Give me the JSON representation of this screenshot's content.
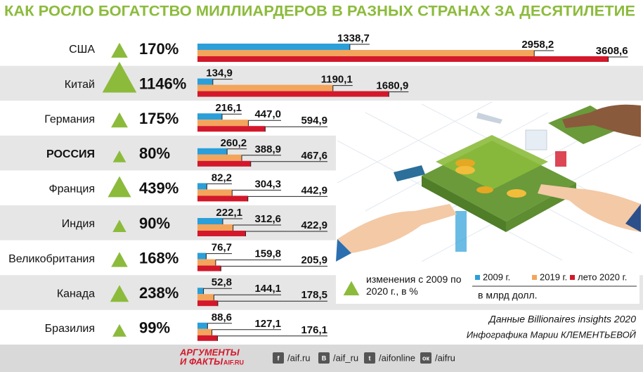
{
  "chart_data": {
    "type": "bar",
    "orientation": "horizontal",
    "title": "КАК РОСЛО БОГАТСТВО МИЛЛИАРДЕРОВ В РАЗНЫХ СТРАНАХ ЗА ДЕСЯТИЛЕТИЕ",
    "categories": [
      "США",
      "Китай",
      "Германия",
      "РОССИЯ",
      "Франция",
      "Индия",
      "Великобритания",
      "Канада",
      "Бразилия"
    ],
    "highlight_index": 3,
    "series": [
      {
        "name": "2009 г.",
        "color": "#2b9fd9",
        "values": [
          1338.7,
          134.9,
          216.1,
          260.2,
          82.2,
          222.1,
          76.7,
          52.8,
          88.6
        ],
        "value_labels": [
          "1338,7",
          "134,9",
          "216,1",
          "260,2",
          "82,2",
          "222,1",
          "76,7",
          "52,8",
          "88,6"
        ]
      },
      {
        "name": "2019 г.",
        "color": "#f3a55c",
        "values": [
          2958.2,
          1190.1,
          447.0,
          388.9,
          304.3,
          312.6,
          159.8,
          144.1,
          127.1
        ],
        "value_labels": [
          "2958,2",
          "1190,1",
          "447,0",
          "388,9",
          "304,3",
          "312,6",
          "159,8",
          "144,1",
          "127,1"
        ]
      },
      {
        "name": "лето 2020 г.",
        "color": "#d3182b",
        "values": [
          3608.6,
          1680.9,
          594.9,
          467.6,
          442.9,
          422.9,
          205.9,
          178.5,
          176.1
        ],
        "value_labels": [
          "3608,6",
          "1680,9",
          "594,9",
          "467,6",
          "442,9",
          "422,9",
          "205,9",
          "178,5",
          "176,1"
        ]
      }
    ],
    "change": {
      "name": "изменения с 2009 по 2020 г., в %",
      "color": "#8cbb3c",
      "values": [
        170,
        1146,
        175,
        80,
        439,
        90,
        168,
        238,
        99
      ],
      "value_labels": [
        "170%",
        "1146%",
        "175%",
        "80%",
        "439%",
        "90%",
        "168%",
        "238%",
        "99%"
      ]
    },
    "unit": "в млрд долл.",
    "source": [
      "Данные Billionaires insights 2020",
      "Инфографика Марии КЛЕМЕНТЬЕВОЙ"
    ]
  },
  "footer": {
    "logo": [
      "АРГУМЕНТЫ",
      "И ФАКТЫ",
      "AIF.RU"
    ],
    "social": [
      {
        "icon": "f",
        "label": "/aif.ru"
      },
      {
        "icon": "В",
        "label": "/aif_ru"
      },
      {
        "icon": "t",
        "label": "/aifonline"
      },
      {
        "icon": "ок",
        "label": "/aifru"
      }
    ]
  }
}
